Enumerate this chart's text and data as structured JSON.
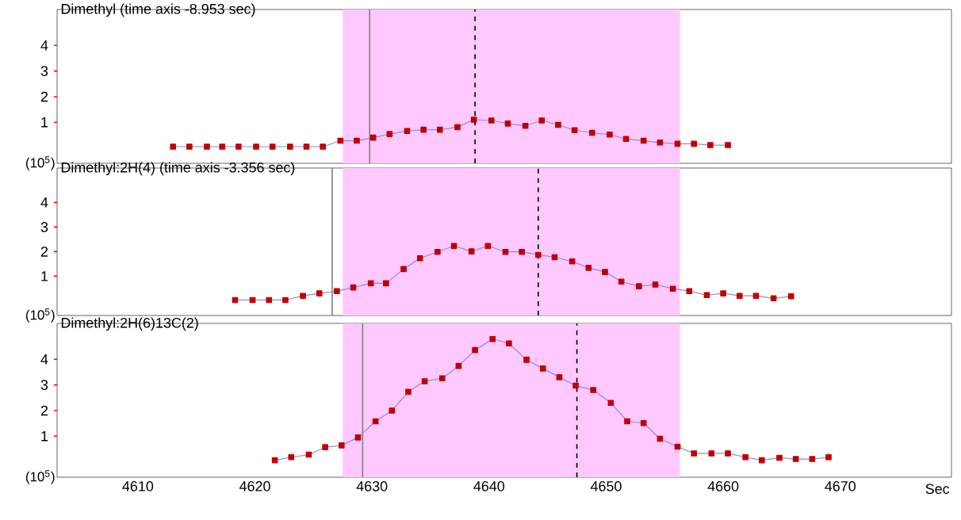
{
  "chart_data": [
    {
      "type": "line",
      "title": "Dimethyl (time axis -8.953 sec)",
      "ylabel": "(10$^{5}$)",
      "marker": "square",
      "tick_labels": "y",
      "xlim": [
        4603.1,
        4679.5
      ],
      "xticks": [
        4610,
        4620,
        4630,
        4640,
        4650,
        4660,
        4670
      ],
      "ylim": [
        -0.6,
        5.4
      ],
      "yticks": [
        1,
        2,
        3,
        4
      ],
      "bands": [
        {
          "axis": "x",
          "from": 4627.5,
          "to": 4656.3,
          "color": "#ffc8ff"
        }
      ],
      "ref_lines": [
        {
          "axis": "x",
          "value": 4629.8,
          "color": "#808080",
          "line_style": "solid"
        },
        {
          "axis": "x",
          "value": 4638.8,
          "color": "#000000",
          "line_style": "dashed"
        }
      ],
      "x": [
        4613.0,
        4614.4,
        4615.9,
        4617.2,
        4618.6,
        4620.1,
        4621.5,
        4623.0,
        4624.4,
        4625.8,
        4627.3,
        4628.7,
        4630.1,
        4631.5,
        4633.0,
        4634.4,
        4635.8,
        4637.3,
        4638.7,
        4640.2,
        4641.6,
        4643.1,
        4644.5,
        4645.9,
        4647.3,
        4648.8,
        4650.3,
        4651.7,
        4653.2,
        4654.6,
        4656.1,
        4657.5,
        4658.9,
        4660.4
      ],
      "series": [
        {
          "color": "#c00000",
          "values": [
            0.05,
            0.05,
            0.05,
            0.05,
            0.05,
            0.05,
            0.05,
            0.05,
            0.05,
            0.05,
            0.28,
            0.28,
            0.4,
            0.54,
            0.66,
            0.71,
            0.71,
            0.81,
            1.1,
            1.07,
            0.95,
            0.86,
            1.07,
            0.9,
            0.69,
            0.59,
            0.52,
            0.35,
            0.28,
            0.21,
            0.16,
            0.16,
            0.11,
            0.11
          ]
        }
      ]
    },
    {
      "type": "line",
      "title": "Dimethyl:2H(4) (time axis -3.356 sec)",
      "ylabel": "(10$^{5}$)",
      "marker": "square",
      "tick_labels": "y",
      "xlim": [
        4603.1,
        4679.5
      ],
      "xticks": [
        4610,
        4620,
        4630,
        4640,
        4650,
        4660,
        4670
      ],
      "ylim": [
        -0.6,
        5.4
      ],
      "yticks": [
        1,
        2,
        3,
        4
      ],
      "bands": [
        {
          "axis": "x",
          "from": 4627.5,
          "to": 4656.3,
          "color": "#ffc8ff"
        }
      ],
      "ref_lines": [
        {
          "axis": "x",
          "value": 4626.6,
          "color": "#808080",
          "line_style": "solid"
        },
        {
          "axis": "x",
          "value": 4644.2,
          "color": "#000000",
          "line_style": "dashed"
        }
      ],
      "x": [
        4618.3,
        4619.8,
        4621.2,
        4622.6,
        4624.1,
        4625.5,
        4627.0,
        4628.4,
        4629.9,
        4631.2,
        4632.7,
        4634.1,
        4635.6,
        4637.0,
        4638.5,
        4639.9,
        4641.4,
        4642.8,
        4644.2,
        4645.6,
        4647.1,
        4648.5,
        4649.9,
        4651.3,
        4652.8,
        4654.2,
        4655.7,
        4657.1,
        4658.6,
        4660.0,
        4661.4,
        4662.8,
        4664.3,
        4665.8
      ],
      "series": [
        {
          "color": "#c00000",
          "values": [
            0.03,
            0.03,
            0.03,
            0.03,
            0.2,
            0.3,
            0.39,
            0.54,
            0.71,
            0.71,
            1.29,
            1.73,
            1.99,
            2.23,
            2.01,
            2.23,
            1.99,
            1.99,
            1.87,
            1.77,
            1.6,
            1.34,
            1.17,
            0.78,
            0.59,
            0.66,
            0.49,
            0.39,
            0.23,
            0.3,
            0.2,
            0.2,
            0.1,
            0.18
          ]
        }
      ]
    },
    {
      "type": "line",
      "title": "Dimethyl:2H(6)13C(2)",
      "ylabel": "(10$^{5}$)",
      "xlabel": "Sec",
      "marker": "square",
      "xlim": [
        4603.1,
        4679.5
      ],
      "xticks": [
        4610,
        4620,
        4630,
        4640,
        4650,
        4660,
        4670
      ],
      "ylim": [
        -0.6,
        5.4
      ],
      "yticks": [
        1,
        2,
        3,
        4
      ],
      "bands": [
        {
          "axis": "x",
          "from": 4627.5,
          "to": 4656.3,
          "color": "#ffc8ff"
        }
      ],
      "ref_lines": [
        {
          "axis": "x",
          "value": 4629.2,
          "color": "#808080",
          "line_style": "solid"
        },
        {
          "axis": "x",
          "value": 4647.5,
          "color": "#000000",
          "line_style": "dashed"
        }
      ],
      "x": [
        4621.7,
        4623.1,
        4624.6,
        4626.0,
        4627.4,
        4628.8,
        4630.3,
        4631.7,
        4633.1,
        4634.5,
        4636.0,
        4637.4,
        4638.8,
        4640.3,
        4641.7,
        4643.2,
        4644.6,
        4646.0,
        4647.4,
        4648.9,
        4650.4,
        4651.8,
        4653.2,
        4654.6,
        4656.1,
        4657.5,
        4659.0,
        4660.4,
        4661.9,
        4663.3,
        4664.8,
        4666.2,
        4667.6,
        4669.0
      ],
      "series": [
        {
          "color": "#c00000",
          "values": [
            0.06,
            0.18,
            0.28,
            0.57,
            0.64,
            0.95,
            1.58,
            2.0,
            2.73,
            3.14,
            3.26,
            3.74,
            4.36,
            4.79,
            4.62,
            3.98,
            3.64,
            3.3,
            2.97,
            2.8,
            2.3,
            1.58,
            1.51,
            0.9,
            0.59,
            0.33,
            0.33,
            0.33,
            0.18,
            0.06,
            0.16,
            0.11,
            0.11,
            0.18
          ]
        }
      ]
    }
  ]
}
